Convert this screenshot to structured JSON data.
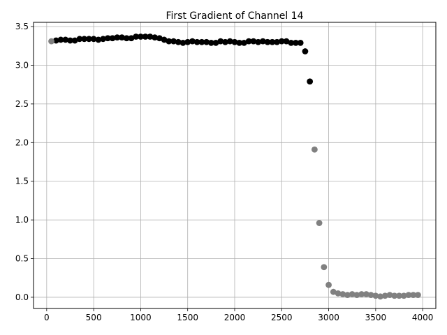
{
  "chart_data": {
    "type": "scatter",
    "title": "First Gradient of Channel 14",
    "xlabel": "",
    "ylabel": "",
    "xlim": [
      -140,
      4140
    ],
    "ylim": [
      -0.145,
      3.555
    ],
    "xticks": [
      0,
      500,
      1000,
      1500,
      2000,
      2500,
      3000,
      3500,
      4000
    ],
    "yticks": [
      0.0,
      0.5,
      1.0,
      1.5,
      2.0,
      2.5,
      3.0,
      3.5
    ],
    "xtick_labels": [
      "0",
      "500",
      "1000",
      "1500",
      "2000",
      "2500",
      "3000",
      "3500",
      "4000"
    ],
    "ytick_labels": [
      "0.0",
      "0.5",
      "1.0",
      "1.5",
      "2.0",
      "2.5",
      "3.0",
      "3.5"
    ],
    "grid": true,
    "colors": {
      "primary": "#000000",
      "secondary": "#808080",
      "grid": "#b0b0b0"
    },
    "series": [
      {
        "color": "#000000",
        "x": [
          100,
          150,
          200,
          250,
          300,
          350,
          400,
          450,
          500,
          550,
          600,
          650,
          700,
          750,
          800,
          850,
          900,
          950,
          1000,
          1050,
          1100,
          1150,
          1200,
          1250,
          1300,
          1350,
          1400,
          1450,
          1500,
          1550,
          1600,
          1650,
          1700,
          1750,
          1800,
          1850,
          1900,
          1950,
          2000,
          2050,
          2100,
          2150,
          2200,
          2250,
          2300,
          2350,
          2400,
          2450,
          2500,
          2550,
          2600,
          2650,
          2700,
          2750,
          2800
        ],
        "y": [
          3.32,
          3.33,
          3.33,
          3.32,
          3.32,
          3.34,
          3.34,
          3.34,
          3.34,
          3.33,
          3.34,
          3.35,
          3.35,
          3.36,
          3.36,
          3.35,
          3.35,
          3.37,
          3.37,
          3.37,
          3.37,
          3.36,
          3.35,
          3.33,
          3.31,
          3.31,
          3.3,
          3.29,
          3.3,
          3.31,
          3.3,
          3.3,
          3.3,
          3.29,
          3.29,
          3.31,
          3.3,
          3.31,
          3.3,
          3.29,
          3.29,
          3.31,
          3.31,
          3.3,
          3.31,
          3.3,
          3.3,
          3.3,
          3.31,
          3.31,
          3.29,
          3.29,
          3.29,
          3.18,
          2.79
        ]
      },
      {
        "color": "#808080",
        "x": [
          50,
          2850,
          2900,
          2950,
          3000,
          3050,
          3100,
          3150,
          3200,
          3250,
          3300,
          3350,
          3400,
          3450,
          3500,
          3550,
          3600,
          3650,
          3700,
          3750,
          3800,
          3850,
          3900,
          3950
        ],
        "y": [
          3.31,
          1.91,
          0.96,
          0.39,
          0.16,
          0.07,
          0.05,
          0.04,
          0.03,
          0.04,
          0.03,
          0.04,
          0.04,
          0.03,
          0.02,
          0.01,
          0.02,
          0.03,
          0.02,
          0.02,
          0.02,
          0.03,
          0.03,
          0.03
        ]
      }
    ]
  }
}
